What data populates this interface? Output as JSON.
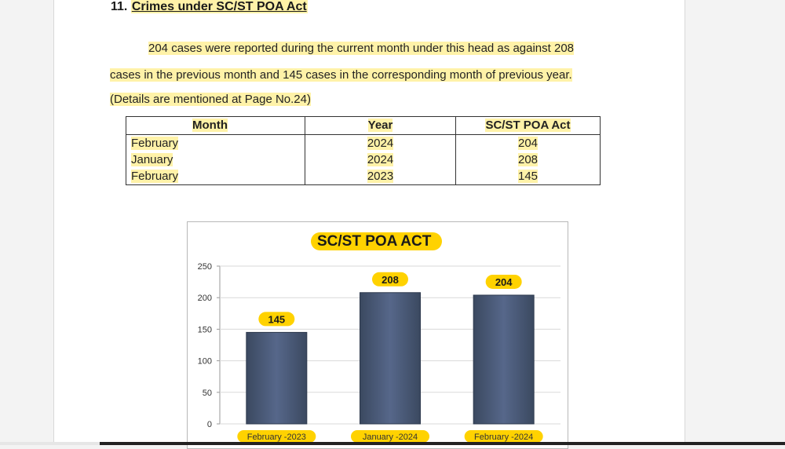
{
  "section": {
    "number": "11.",
    "title": "Crimes under SC/ST POA Act"
  },
  "paragraph": {
    "line1": "204 cases were reported during the current month under this head as against 208",
    "line2": "cases in the previous month and 145 cases in the corresponding month of previous year.",
    "line3": "(Details are mentioned at Page No.24)"
  },
  "table": {
    "headers": [
      "Month",
      "Year",
      "SC/ST POA Act"
    ],
    "rows": [
      [
        "February",
        "2024",
        "204"
      ],
      [
        "January",
        "2024",
        "208"
      ],
      [
        "February",
        "2023",
        "145"
      ]
    ]
  },
  "chart_data": {
    "type": "bar",
    "title": "SC/ST POA ACT",
    "categories": [
      "February -2023",
      "January -2024",
      "February -2024"
    ],
    "values": [
      145,
      208,
      204
    ],
    "ylim": [
      0,
      250
    ],
    "yticks": [
      0,
      50,
      100,
      150,
      200,
      250
    ],
    "grid": true,
    "bar_color": "#4a5a72",
    "label_highlight_color": "#ffd200"
  }
}
